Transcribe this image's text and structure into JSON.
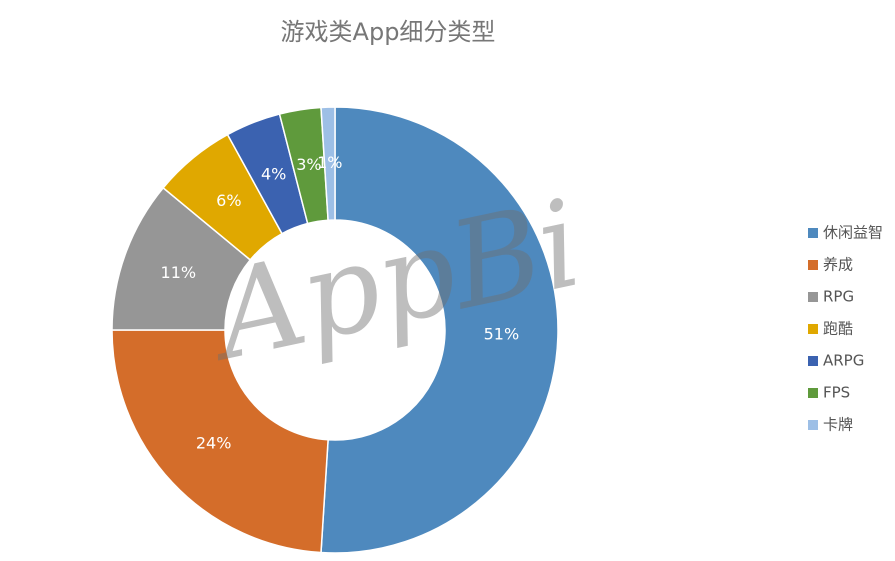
{
  "chart_data": {
    "type": "donut",
    "title": "游戏类App细分类型",
    "categories": [
      "休闲益智",
      "养成",
      "RPG",
      "跑酷",
      "ARPG",
      "FPS",
      "卡牌"
    ],
    "values": [
      51,
      24,
      11,
      6,
      4,
      3,
      1
    ],
    "value_labels": [
      "51%",
      "24%",
      "11%",
      "6%",
      "4%",
      "3%",
      "1%"
    ],
    "colors": [
      "#4e89be",
      "#d46d2a",
      "#969696",
      "#e0a800",
      "#3b62b0",
      "#5f9a3c",
      "#9dbfe6"
    ],
    "legend": "right",
    "watermark": "AppBi"
  }
}
